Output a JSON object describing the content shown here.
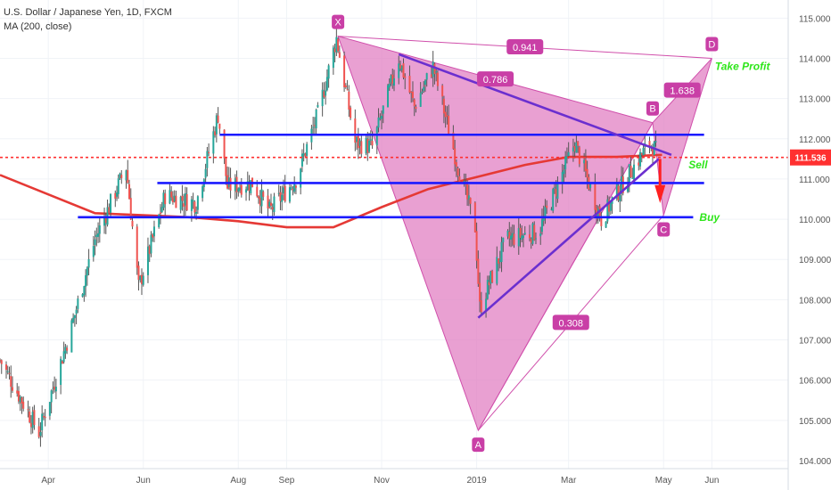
{
  "legend": {
    "symbol": "U.S. Dollar / Japanese Yen, 1D, FXCM",
    "indicator": "MA (200, close)"
  },
  "colors": {
    "up": "#26a69a",
    "down": "#ef5350",
    "wick": "#555555",
    "ma": "#e53935",
    "pattern_fill": "#e07bc1",
    "pattern_stroke": "#d04fab",
    "level": "#1a1aff",
    "trendline": "#6b2fcf",
    "price_line": "#ff3030",
    "price_tag": "#ff3030",
    "label_green": "#2ee61a",
    "grid": "#f0f3f7",
    "axis_text": "#555555"
  },
  "chart_data": {
    "type": "candlestick",
    "title": "U.S. Dollar / Japanese Yen, 1D, FXCM",
    "indicator": "MA (200, close)",
    "ylim": [
      103.8,
      115.45
    ],
    "xlim": [
      "2018-03-01",
      "2019-07-20"
    ],
    "y_ticks": [
      "104.000",
      "105.000",
      "106.000",
      "107.000",
      "108.000",
      "109.000",
      "110.000",
      "111.000",
      "112.000",
      "113.000",
      "114.000",
      "115.000"
    ],
    "x_ticks": [
      {
        "label": "Apr",
        "date": "2018-04-01"
      },
      {
        "label": "Jun",
        "date": "2018-06-01"
      },
      {
        "label": "Aug",
        "date": "2018-08-01"
      },
      {
        "label": "Sep",
        "date": "2018-09-01"
      },
      {
        "label": "Nov",
        "date": "2018-11-01"
      },
      {
        "label": "2019",
        "date": "2019-01-01"
      },
      {
        "label": "Mar",
        "date": "2019-03-01"
      },
      {
        "label": "May",
        "date": "2019-05-01"
      },
      {
        "label": "Jun",
        "date": "2019-06-01"
      }
    ],
    "price_anchors": [
      [
        "2018-03-01",
        106.5
      ],
      [
        "2018-03-26",
        104.7
      ],
      [
        "2018-04-15",
        107.2
      ],
      [
        "2018-05-01",
        109.5
      ],
      [
        "2018-05-21",
        111.3
      ],
      [
        "2018-05-29",
        108.3
      ],
      [
        "2018-06-15",
        110.6
      ],
      [
        "2018-07-05",
        110.4
      ],
      [
        "2018-07-19",
        112.6
      ],
      [
        "2018-07-25",
        110.8
      ],
      [
        "2018-08-10",
        110.9
      ],
      [
        "2018-08-21",
        110.2
      ],
      [
        "2018-09-07",
        111.0
      ],
      [
        "2018-09-21",
        112.6
      ],
      [
        "2018-10-03",
        114.5
      ],
      [
        "2018-10-15",
        111.9
      ],
      [
        "2018-10-26",
        111.8
      ],
      [
        "2018-11-12",
        114.0
      ],
      [
        "2018-11-22",
        112.8
      ],
      [
        "2018-12-04",
        113.8
      ],
      [
        "2018-12-20",
        111.3
      ],
      [
        "2018-12-31",
        109.8
      ],
      [
        "2019-01-03",
        107.8
      ],
      [
        "2019-01-20",
        109.5
      ],
      [
        "2019-02-10",
        109.7
      ],
      [
        "2019-03-05",
        111.9
      ],
      [
        "2019-03-22",
        110.0
      ],
      [
        "2019-04-10",
        111.2
      ],
      [
        "2019-04-22",
        111.9
      ],
      [
        "2019-04-28",
        111.6
      ]
    ],
    "ma_200": [
      [
        "2018-03-01",
        111.1
      ],
      [
        "2018-05-01",
        110.15
      ],
      [
        "2018-06-01",
        110.1
      ],
      [
        "2018-07-01",
        110.05
      ],
      [
        "2018-08-01",
        109.95
      ],
      [
        "2018-09-01",
        109.8
      ],
      [
        "2018-10-01",
        109.8
      ],
      [
        "2018-11-01",
        110.3
      ],
      [
        "2018-12-01",
        110.75
      ],
      [
        "2019-01-01",
        111.05
      ],
      [
        "2019-02-01",
        111.35
      ],
      [
        "2019-03-01",
        111.55
      ],
      [
        "2019-04-01",
        111.55
      ],
      [
        "2019-04-30",
        111.6
      ]
    ],
    "harmonic_pattern": {
      "points": [
        {
          "label": "X",
          "date": "2018-10-04",
          "price": 114.55
        },
        {
          "label": "A",
          "date": "2019-01-02",
          "price": 104.75
        },
        {
          "label": "B",
          "date": "2019-04-24",
          "price": 112.4
        },
        {
          "label": "C",
          "date": "2019-05-01",
          "price": 110.1
        },
        {
          "label": "D",
          "date": "2019-06-01",
          "price": 114.0
        }
      ],
      "ratios": [
        {
          "label": "0.941",
          "from": "X",
          "to": "D"
        },
        {
          "label": "0.786",
          "from": "X",
          "to": "B"
        },
        {
          "label": "1.638",
          "from": "B",
          "to": "D"
        },
        {
          "label": "0.308",
          "from": "A",
          "to": "C"
        }
      ]
    },
    "levels": [
      {
        "price": 112.1,
        "from": "2018-07-20",
        "to": "2019-05-27"
      },
      {
        "price": 110.9,
        "from": "2018-06-10",
        "to": "2019-05-27"
      },
      {
        "price": 110.05,
        "from": "2018-04-20",
        "to": "2019-05-20"
      }
    ],
    "trendlines": [
      {
        "from": [
          "2018-11-12",
          114.1
        ],
        "to": [
          "2019-05-06",
          111.6
        ]
      },
      {
        "from": [
          "2019-01-02",
          107.55
        ],
        "to": [
          "2019-04-28",
          111.5
        ]
      }
    ],
    "annotations": [
      {
        "text": "Take Profit",
        "date": "2019-06-03",
        "price": 113.8
      },
      {
        "text": "Sell",
        "date": "2019-05-17",
        "price": 111.35
      },
      {
        "text": "Buy",
        "date": "2019-05-24",
        "price": 110.05
      }
    ],
    "last_price": {
      "value": 111.536,
      "label": "111.536"
    }
  }
}
